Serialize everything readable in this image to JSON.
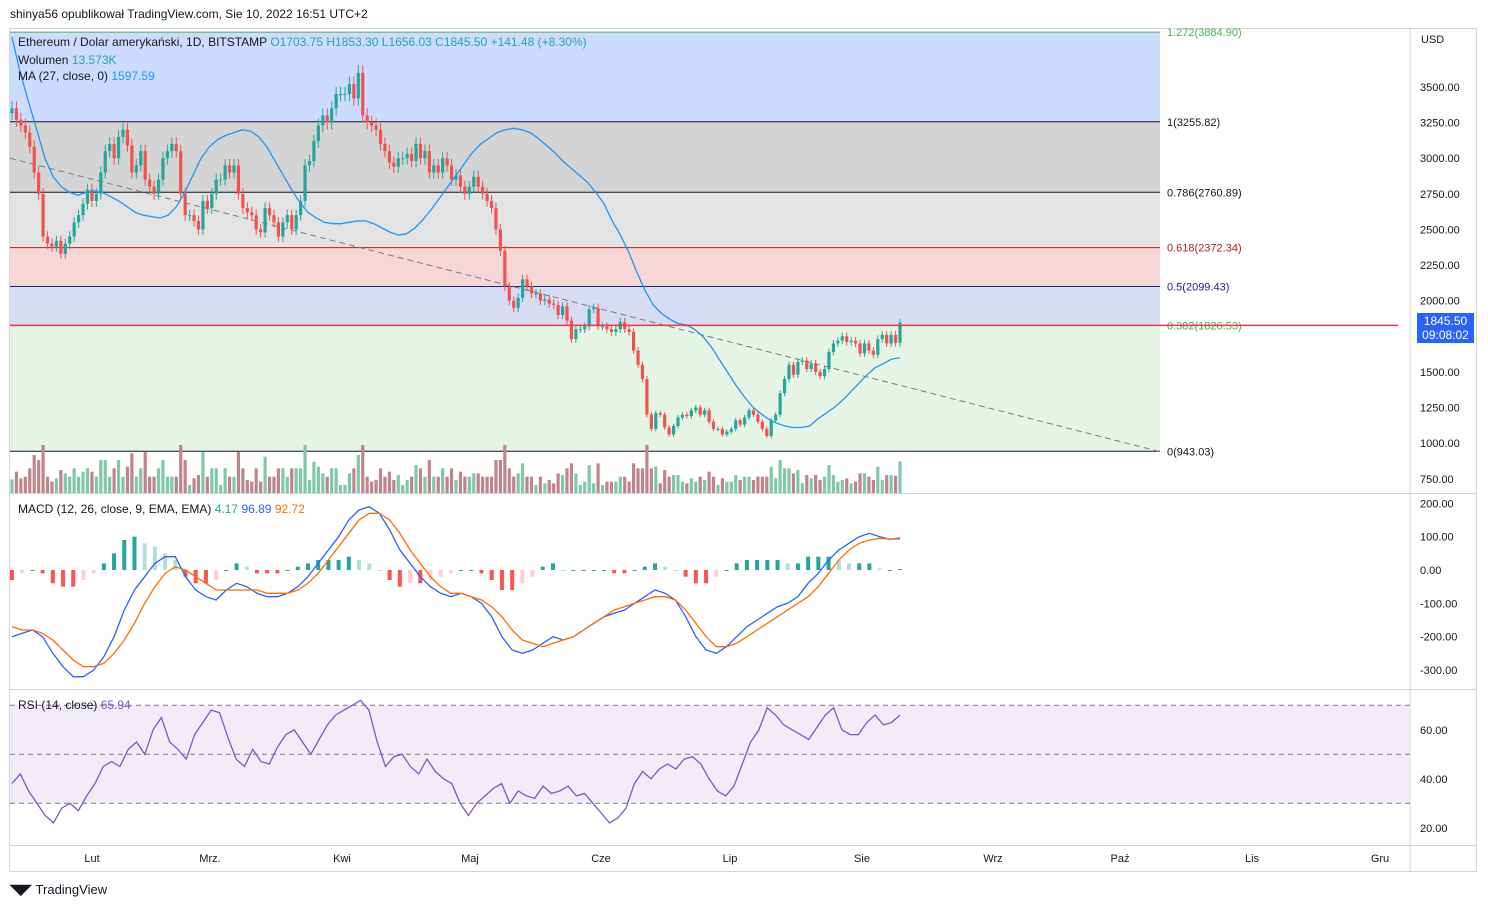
{
  "header": {
    "text": "shinya56 opublikował TradingView.com, Sie 10, 2022 16:51 UTC+2"
  },
  "footer": {
    "logo_text": "TradingView"
  },
  "legend": {
    "symbol": "Ethereum / Dolar amerykański, 1D, BITSTAMP",
    "o": "O1703.75",
    "h": "H1853.30",
    "l": "L1656.03",
    "c": "C1845.50",
    "chg": "+141.48 (+8.30%)",
    "volume_label": "Wolumen",
    "volume_value": "13.573K",
    "ma_label": "MA (27, close, 0)",
    "ma_value": "1597.59",
    "macd_label": "MACD (12, 26, close, 9, EMA, EMA)",
    "macd_hist": "4.17",
    "macd_line": "96.89",
    "macd_signal": "92.72",
    "rsi_label": "RSI (14, close)",
    "rsi_value": "65.94"
  },
  "currency": "USD",
  "last_price": {
    "price": "1845.50",
    "countdown": "09:08:02"
  },
  "colors": {
    "up": "#26a69a",
    "down": "#ef5350",
    "ma": "#2196f3",
    "macd": "#2962ff",
    "signal": "#ff6d00",
    "rsi": "#7e57c2",
    "fib_line_blue": "#1a237e",
    "fib_line_red": "#b71c1c"
  },
  "fib_levels": [
    {
      "label": "1.272(3884.90)",
      "value": 3884.9,
      "fill": "#ccdcff",
      "color": "#4caf50"
    },
    {
      "label": "1(3255.82)",
      "value": 3255.82,
      "fill": "#d4d4d4",
      "color": "#131722"
    },
    {
      "label": "0.786(2760.89)",
      "value": 2760.89,
      "fill": "#e3e3e3",
      "color": "#131722"
    },
    {
      "label": "0.618(2372.34)",
      "value": 2372.34,
      "fill": "#f7d6d6",
      "color": "#b71c1c"
    },
    {
      "label": "0.5(2099.43)",
      "value": 2099.43,
      "fill": "#d7dcf2",
      "color": "#1a237e"
    },
    {
      "label": "0.382(1826.53)",
      "value": 1826.53,
      "fill": "#e6f4e6",
      "color": "#4caf50"
    },
    {
      "label": "0(943.03)",
      "value": 943.03,
      "fill": "",
      "color": "#131722"
    }
  ],
  "chart_data": [
    {
      "type": "candlestick",
      "title": "Ethereum / Dolar amerykański, 1D, BITSTAMP",
      "ylabel": "USD",
      "x_ticks": [
        "Lut",
        "Mrz.",
        "Kwi",
        "Maj",
        "Cze",
        "Lip",
        "Sie",
        "Wrz",
        "Paź",
        "Lis",
        "Gru"
      ],
      "y_ticks": [
        "750.00",
        "1000.00",
        "1250.00",
        "1500.00",
        "1750.00",
        "2000.00",
        "2250.00",
        "2500.00",
        "2750.00",
        "3000.00",
        "3250.00",
        "3500.00"
      ],
      "ylim": [
        650,
        3900
      ],
      "trendline": {
        "from_price": 3000,
        "to_price": 940,
        "style": "dashed"
      },
      "series": [
        {
          "name": "close",
          "values": [
            3350,
            3270,
            3230,
            3180,
            3080,
            2900,
            2750,
            2450,
            2400,
            2380,
            2420,
            2330,
            2400,
            2450,
            2550,
            2600,
            2680,
            2780,
            2700,
            2750,
            2900,
            3050,
            3100,
            3000,
            3150,
            3200,
            3090,
            2900,
            2950,
            3050,
            2850,
            2800,
            2750,
            2850,
            3000,
            3050,
            3100,
            3050,
            2750,
            2600,
            2600,
            2560,
            2500,
            2700,
            2650,
            2750,
            2850,
            2850,
            2950,
            2900,
            2950,
            2750,
            2650,
            2620,
            2600,
            2500,
            2480,
            2650,
            2600,
            2550,
            2450,
            2550,
            2600,
            2500,
            2600,
            2700,
            2950,
            2980,
            3120,
            3230,
            3300,
            3250,
            3350,
            3450,
            3450,
            3450,
            3520,
            3420,
            3600,
            3300,
            3250,
            3230,
            3200,
            3100,
            3050,
            2970,
            2940,
            3000,
            3000,
            3030,
            2980,
            3100,
            3000,
            3050,
            2900,
            2950,
            2900,
            3000,
            2950,
            2850,
            2880,
            2800,
            2750,
            2800,
            2870,
            2800,
            2750,
            2700,
            2650,
            2500,
            2350,
            2100,
            2000,
            1950,
            2020,
            2150,
            2100,
            2050,
            2050,
            2000,
            2010,
            1980,
            1970,
            1900,
            1960,
            1860,
            1730,
            1800,
            1800,
            1820,
            1940,
            1950,
            1820,
            1820,
            1800,
            1780,
            1800,
            1850,
            1800,
            1780,
            1650,
            1550,
            1450,
            1200,
            1100,
            1210,
            1200,
            1110,
            1060,
            1120,
            1180,
            1200,
            1190,
            1230,
            1250,
            1200,
            1230,
            1150,
            1100,
            1100,
            1060,
            1080,
            1100,
            1160,
            1130,
            1180,
            1230,
            1200,
            1150,
            1100,
            1050,
            1160,
            1200,
            1350,
            1450,
            1550,
            1480,
            1570,
            1580,
            1520,
            1560,
            1500,
            1470,
            1520,
            1640,
            1700,
            1720,
            1750,
            1710,
            1720,
            1700,
            1630,
            1700,
            1650,
            1620,
            1730,
            1760,
            1700,
            1760,
            1704,
            1845
          ]
        },
        {
          "name": "MA (27, close, 0)",
          "values": [
            3850,
            3600,
            3400,
            3200,
            3000,
            2870,
            2800,
            2760,
            2740,
            2760,
            2770,
            2760,
            2730,
            2700,
            2660,
            2620,
            2600,
            2590,
            2580,
            2600,
            2660,
            2760,
            2880,
            3000,
            3080,
            3130,
            3160,
            3180,
            3200,
            3190,
            3150,
            3080,
            2980,
            2880,
            2780,
            2690,
            2620,
            2580,
            2550,
            2540,
            2540,
            2550,
            2560,
            2560,
            2540,
            2510,
            2480,
            2460,
            2470,
            2510,
            2570,
            2640,
            2720,
            2800,
            2880,
            2960,
            3040,
            3100,
            3140,
            3180,
            3200,
            3210,
            3200,
            3180,
            3140,
            3090,
            3040,
            2980,
            2930,
            2880,
            2830,
            2760,
            2680,
            2560,
            2460,
            2340,
            2200,
            2070,
            1970,
            1910,
            1870,
            1840,
            1830,
            1800,
            1750,
            1680,
            1590,
            1500,
            1410,
            1330,
            1260,
            1210,
            1170,
            1140,
            1120,
            1110,
            1110,
            1120,
            1170,
            1210,
            1250,
            1300,
            1360,
            1420,
            1480,
            1530,
            1560,
            1590,
            1598
          ]
        }
      ]
    },
    {
      "type": "bar",
      "name": "Wolumen",
      "values": [
        1,
        1,
        1,
        1,
        1,
        1,
        1
      ]
    },
    {
      "type": "line",
      "name": "MACD (12, 26, close, 9, EMA, EMA)",
      "y_ticks": [
        "-300.00",
        "-200.00",
        "-100.00",
        "0.00",
        "100.00",
        "200.00"
      ],
      "ylim": [
        -330,
        210
      ],
      "series": [
        {
          "name": "MACD",
          "values": [
            -200,
            -190,
            -180,
            -200,
            -250,
            -290,
            -320,
            -320,
            -300,
            -260,
            -200,
            -120,
            -60,
            -20,
            20,
            40,
            40,
            -20,
            -60,
            -80,
            -90,
            -60,
            -40,
            -50,
            -70,
            -80,
            -80,
            -70,
            -50,
            -20,
            20,
            60,
            100,
            150,
            180,
            190,
            170,
            120,
            60,
            20,
            -20,
            -50,
            -70,
            -80,
            -70,
            -80,
            -100,
            -140,
            -200,
            -240,
            -250,
            -240,
            -220,
            -200,
            -210,
            -200,
            -180,
            -160,
            -140,
            -130,
            -120,
            -100,
            -80,
            -60,
            -70,
            -90,
            -140,
            -200,
            -240,
            -250,
            -230,
            -200,
            -170,
            -150,
            -130,
            -110,
            -100,
            -80,
            -40,
            -10,
            30,
            60,
            80,
            100,
            110,
            100,
            92,
            96
          ]
        },
        {
          "name": "Signal",
          "values": [
            -170,
            -180,
            -180,
            -190,
            -210,
            -240,
            -270,
            -290,
            -290,
            -280,
            -250,
            -210,
            -160,
            -100,
            -50,
            -10,
            10,
            0,
            -20,
            -40,
            -60,
            -60,
            -60,
            -60,
            -60,
            -70,
            -70,
            -70,
            -60,
            -40,
            -10,
            30,
            70,
            110,
            150,
            170,
            170,
            150,
            110,
            60,
            20,
            -20,
            -50,
            -70,
            -70,
            -80,
            -90,
            -110,
            -140,
            -180,
            -210,
            -220,
            -230,
            -220,
            -210,
            -200,
            -180,
            -160,
            -140,
            -120,
            -110,
            -100,
            -90,
            -80,
            -80,
            -90,
            -120,
            -160,
            -200,
            -230,
            -230,
            -220,
            -200,
            -180,
            -160,
            -140,
            -120,
            -100,
            -80,
            -50,
            -10,
            30,
            60,
            80,
            90,
            95,
            93,
            93
          ]
        }
      ]
    },
    {
      "type": "line",
      "name": "RSI (14, close)",
      "y_ticks": [
        "20.00",
        "40.00",
        "60.00"
      ],
      "ylim": [
        15,
        75
      ],
      "levels": [
        70,
        50,
        30
      ],
      "series": [
        {
          "name": "RSI",
          "values": [
            38,
            42,
            35,
            30,
            25,
            22,
            28,
            30,
            27,
            33,
            38,
            45,
            47,
            45,
            52,
            55,
            50,
            60,
            65,
            55,
            52,
            48,
            58,
            63,
            68,
            67,
            57,
            48,
            45,
            52,
            47,
            46,
            53,
            58,
            60,
            55,
            50,
            56,
            62,
            66,
            68,
            70,
            72,
            68,
            55,
            45,
            49,
            50,
            45,
            42,
            48,
            43,
            40,
            38,
            30,
            25,
            30,
            33,
            36,
            38,
            30,
            35,
            33,
            32,
            37,
            34,
            35,
            37,
            33,
            34,
            30,
            26,
            22,
            24,
            28,
            38,
            43,
            40,
            44,
            46,
            44,
            48,
            49,
            46,
            40,
            35,
            33,
            37,
            46,
            55,
            60,
            69,
            66,
            62,
            60,
            58,
            56,
            61,
            66,
            69,
            60,
            58,
            58,
            63,
            66,
            62,
            63,
            66
          ]
        }
      ]
    }
  ]
}
